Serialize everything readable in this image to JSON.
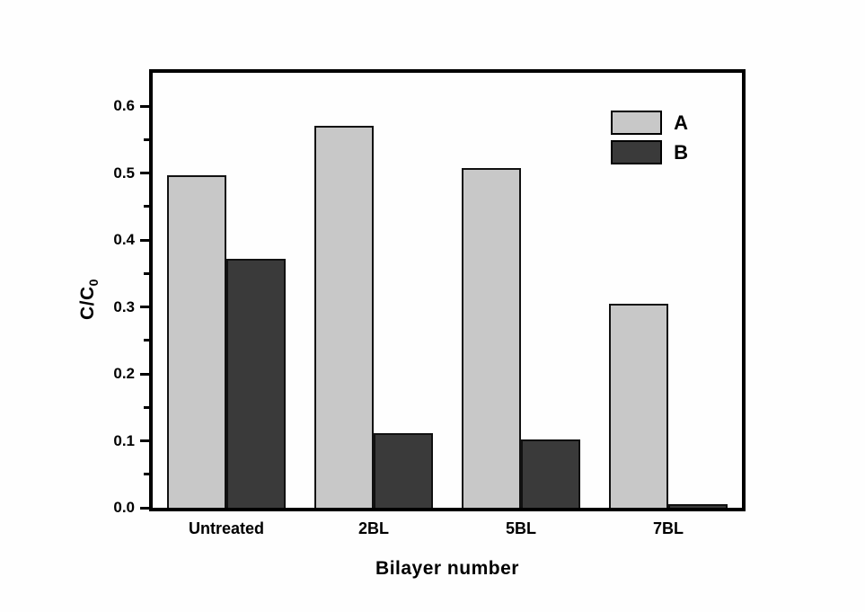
{
  "chart_data": {
    "type": "bar",
    "title": "",
    "xlabel": "Bilayer number",
    "ylabel_main": "C/C",
    "ylabel_sub": "0",
    "categories": [
      "Untreated",
      "2BL",
      "5BL",
      "7BL"
    ],
    "series": [
      {
        "name": "A",
        "color": "#c8c8c8",
        "values": [
          0.497,
          0.571,
          0.508,
          0.305
        ]
      },
      {
        "name": "B",
        "color": "#3a3a3a",
        "values": [
          0.372,
          0.111,
          0.102,
          0.005
        ]
      }
    ],
    "ylim": [
      0,
      0.65
    ],
    "yticks": [
      {
        "value": 0.0,
        "label": "0.0"
      },
      {
        "value": 0.1,
        "label": "0.1"
      },
      {
        "value": 0.2,
        "label": "0.2"
      },
      {
        "value": 0.3,
        "label": "0.3"
      },
      {
        "value": 0.4,
        "label": "0.4"
      },
      {
        "value": 0.5,
        "label": "0.5"
      },
      {
        "value": 0.6,
        "label": "0.6"
      }
    ],
    "yticks_minor": [
      0.05,
      0.15,
      0.25,
      0.35,
      0.45,
      0.55
    ],
    "legend_position": "top-right",
    "grid": false,
    "bar_edge_color": "#111111",
    "frame_color": "#000000",
    "background": "#ffffff"
  }
}
